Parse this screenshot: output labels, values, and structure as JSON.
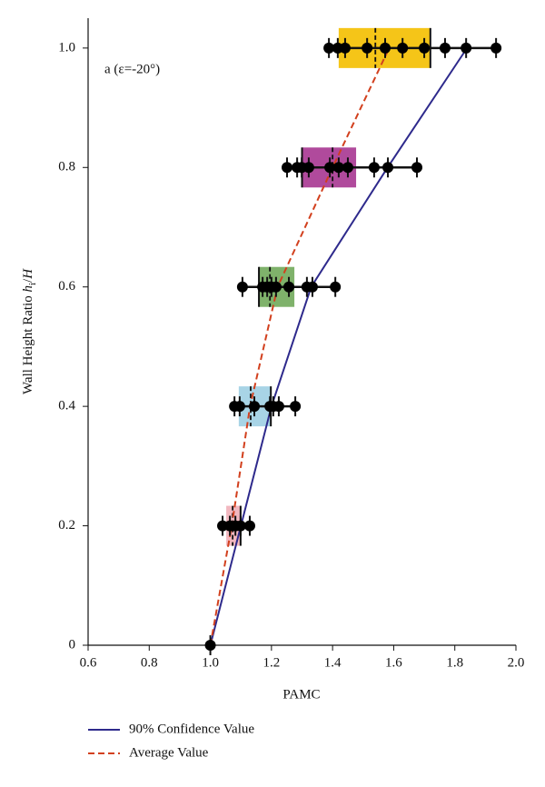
{
  "chart_data": {
    "type": "box",
    "xlabel": "PAMC",
    "ylabel": [
      "Wall Height Ratio ",
      "h",
      "i",
      "/",
      "H"
    ],
    "annotation": "a (ε=-20°)",
    "xlim": [
      0.6,
      2.0
    ],
    "ylim": [
      0,
      1.05
    ],
    "xticks": [
      0.6,
      0.8,
      {
        "value": 1.0,
        "label": "1.0"
      },
      1.2,
      1.4,
      1.6,
      1.8,
      {
        "value": 2.0,
        "label": "2.0"
      }
    ],
    "yticks": [
      0,
      0.2,
      0.4,
      0.6,
      0.8,
      {
        "value": 1.0,
        "label": "1.0"
      }
    ],
    "boxes": [
      {
        "y": 0,
        "points": [
          1.0
        ]
      },
      {
        "y": 0.2,
        "color": "#f2b8c0",
        "q1": 1.052,
        "q3": 1.099,
        "median": 1.099,
        "mean": 1.073,
        "points": [
          1.04,
          1.064,
          1.082,
          1.099,
          1.129
        ]
      },
      {
        "y": 0.4,
        "color": "#a8d4e6",
        "q1": 1.093,
        "q3": 1.198,
        "median": 1.198,
        "mean": 1.132,
        "points": [
          1.079,
          1.096,
          1.144,
          1.195,
          1.206,
          1.224,
          1.278
        ]
      },
      {
        "y": 0.6,
        "color": "#7fb26b",
        "q1": 1.159,
        "q3": 1.275,
        "median": 1.159,
        "mean": 1.195,
        "points": [
          1.105,
          1.171,
          1.186,
          1.2,
          1.215,
          1.257,
          1.316,
          1.334,
          1.409
        ]
      },
      {
        "y": 0.8,
        "color": "#b04a9c",
        "q1": 1.3,
        "q3": 1.477,
        "median": 1.3,
        "mean": 1.4,
        "points": [
          1.251,
          1.284,
          1.299,
          1.322,
          1.391,
          1.42,
          1.45,
          1.536,
          1.581,
          1.676
        ]
      },
      {
        "y": 1.0,
        "color": "#f5c518",
        "q1": 1.42,
        "q3": 1.72,
        "median": 1.72,
        "mean": 1.54,
        "points": [
          1.388,
          1.417,
          1.441,
          1.513,
          1.572,
          1.629,
          1.7,
          1.768,
          1.837,
          1.935
        ]
      }
    ],
    "series": [
      {
        "name": "90% Confidence Value",
        "color": "#2e2a8c",
        "dashed": false,
        "x": [
          1.0,
          1.1,
          1.2,
          1.33,
          1.58,
          1.84
        ],
        "y": [
          0,
          0.2,
          0.4,
          0.6,
          0.8,
          1.0
        ]
      },
      {
        "name": "Average Value",
        "color": "#d2401e",
        "dashed": true,
        "x": [
          1.0,
          1.07,
          1.13,
          1.22,
          1.4,
          1.585
        ],
        "y": [
          0,
          0.2,
          0.4,
          0.6,
          0.8,
          1.0
        ]
      }
    ]
  }
}
